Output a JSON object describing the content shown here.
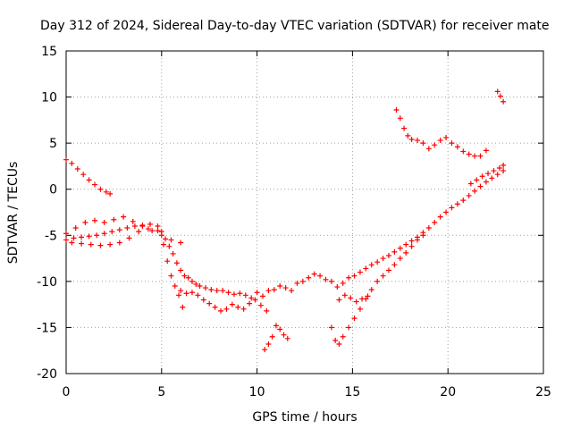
{
  "chart_data": {
    "type": "scatter",
    "title": "Day 312 of 2024, Sidereal Day-to-day VTEC variation (SDTVAR) for receiver mate",
    "xlabel": "GPS time / hours",
    "ylabel": "SDTVAR / TECUs",
    "xlim": [
      0,
      25
    ],
    "ylim": [
      -20,
      15
    ],
    "xticks": [
      "0",
      "5",
      "10",
      "15",
      "20",
      "25"
    ],
    "yticks": [
      "-20",
      "-15",
      "-10",
      "-5",
      "0",
      "5",
      "10",
      "15"
    ],
    "grid": true,
    "marker": "plus",
    "color": "#ff0000",
    "series": [
      {
        "x": [
          0,
          0.3,
          0.6,
          0.9,
          1.2,
          1.5,
          1.8,
          2.1,
          2.3
        ],
        "y": [
          3.2,
          2.8,
          2.2,
          1.6,
          1.0,
          0.5,
          0.0,
          -0.3,
          -0.5
        ]
      },
      {
        "x": [
          0,
          0.4,
          0.8,
          1.2,
          1.6,
          2.0,
          2.4,
          2.8,
          3.2,
          3.6,
          4.0,
          4.4,
          4.8,
          5.0,
          5.2,
          5.4,
          5.6,
          5.8,
          6.0,
          6.2,
          6.4,
          6.6,
          6.8,
          7.0,
          7.3,
          7.6,
          7.9,
          8.2,
          8.5,
          8.8,
          9.1,
          9.4,
          9.7,
          10.0,
          10.3,
          10.6,
          10.9,
          11.2,
          11.5,
          11.8,
          12.1,
          12.4,
          12.7,
          13.0,
          13.3,
          13.6,
          13.9,
          14.2,
          14.5,
          14.8,
          15.1,
          15.4,
          15.7,
          16.0,
          16.3,
          16.6,
          16.9,
          17.2,
          17.5,
          17.8,
          18.1,
          18.4,
          18.7,
          19.0,
          19.3,
          19.6,
          19.9,
          20.2,
          20.5,
          20.8,
          21.1,
          21.4,
          21.7,
          22.0,
          22.3,
          22.6,
          22.9
        ],
        "y": [
          -5.5,
          -5.3,
          -5.2,
          -5.1,
          -5.0,
          -4.8,
          -4.6,
          -4.4,
          -4.2,
          -4.0,
          -3.9,
          -3.8,
          -4.0,
          -4.6,
          -5.4,
          -6.2,
          -7.0,
          -8.0,
          -8.8,
          -9.4,
          -9.6,
          -10.0,
          -10.3,
          -10.5,
          -10.7,
          -10.9,
          -11.0,
          -11.0,
          -11.2,
          -11.4,
          -11.3,
          -11.5,
          -11.8,
          -11.2,
          -11.6,
          -11.0,
          -10.9,
          -10.5,
          -10.7,
          -11.0,
          -10.2,
          -10.0,
          -9.6,
          -9.2,
          -9.4,
          -9.8,
          -10.0,
          -10.6,
          -10.2,
          -9.6,
          -9.4,
          -9.0,
          -8.6,
          -8.2,
          -7.9,
          -7.5,
          -7.2,
          -6.8,
          -6.4,
          -6.0,
          -5.6,
          -5.2,
          -4.7,
          -4.2,
          -3.6,
          -3.0,
          -2.5,
          -2.0,
          -1.6,
          -1.2,
          -0.7,
          -0.2,
          0.3,
          0.8,
          1.2,
          1.6,
          2.0
        ]
      },
      {
        "x": [
          0,
          0.5,
          1.0,
          1.5,
          2.0,
          2.5,
          3.0,
          3.5,
          4.0,
          4.5,
          5.0,
          5.5,
          6.0
        ],
        "y": [
          -4.8,
          -4.2,
          -3.6,
          -3.4,
          -3.6,
          -3.3,
          -3.0,
          -3.5,
          -4.0,
          -4.5,
          -5.0,
          -5.5,
          -5.8
        ]
      },
      {
        "x": [
          0.3,
          0.8,
          1.3,
          1.8,
          2.3,
          2.8,
          3.3,
          3.8,
          4.3,
          4.8,
          5.1,
          5.3,
          5.5,
          5.7,
          5.9,
          6.1
        ],
        "y": [
          -5.8,
          -5.9,
          -6.0,
          -6.1,
          -6.0,
          -5.8,
          -5.3,
          -4.6,
          -4.3,
          -4.5,
          -6.0,
          -7.8,
          -9.4,
          -10.5,
          -11.5,
          -12.8
        ]
      },
      {
        "x": [
          6.0,
          6.3,
          6.6,
          6.9,
          7.2,
          7.5,
          7.8,
          8.1,
          8.4,
          8.7,
          9.0,
          9.3,
          9.6,
          9.9,
          10.2,
          10.5
        ],
        "y": [
          -11.0,
          -11.3,
          -11.2,
          -11.5,
          -12.0,
          -12.4,
          -12.8,
          -13.2,
          -13.0,
          -12.5,
          -12.8,
          -13.0,
          -12.4,
          -12.0,
          -12.6,
          -13.2
        ]
      },
      {
        "x": [
          10.4,
          10.6,
          10.8,
          11.0,
          11.2,
          11.4,
          11.6
        ],
        "y": [
          -17.4,
          -16.8,
          -16.0,
          -14.8,
          -15.2,
          -15.8,
          -16.2
        ]
      },
      {
        "x": [
          13.9,
          14.1,
          14.3,
          14.5,
          14.8,
          15.1,
          15.4,
          15.7,
          16.0,
          16.3,
          16.6,
          16.9,
          17.2,
          17.5,
          17.8,
          18.1,
          18.4,
          18.7
        ],
        "y": [
          -15.0,
          -16.4,
          -16.8,
          -16.0,
          -15.0,
          -14.0,
          -13.0,
          -11.9,
          -10.9,
          -10.0,
          -9.4,
          -8.8,
          -8.2,
          -7.5,
          -6.9,
          -6.2,
          -5.5,
          -5.0
        ]
      },
      {
        "x": [
          14.3,
          14.6,
          14.9,
          15.2,
          15.5,
          15.8
        ],
        "y": [
          -12.0,
          -11.5,
          -11.8,
          -12.2,
          -11.9,
          -11.6
        ]
      },
      {
        "x": [
          17.3,
          17.5,
          17.7,
          17.9,
          18.1,
          18.4,
          18.7,
          19.0,
          19.3,
          19.6,
          19.9,
          20.2,
          20.5,
          20.8,
          21.1,
          21.4,
          21.7,
          22.0
        ],
        "y": [
          8.6,
          7.7,
          6.6,
          5.8,
          5.4,
          5.3,
          5.0,
          4.4,
          4.8,
          5.3,
          5.6,
          5.0,
          4.6,
          4.1,
          3.8,
          3.6,
          3.6,
          4.2
        ]
      },
      {
        "x": [
          21.2,
          21.5,
          21.8,
          22.1,
          22.4,
          22.7,
          22.9
        ],
        "y": [
          0.6,
          1.0,
          1.4,
          1.7,
          2.0,
          2.3,
          2.6
        ]
      },
      {
        "x": [
          22.6,
          22.75,
          22.9
        ],
        "y": [
          10.6,
          10.1,
          9.5
        ]
      }
    ]
  }
}
